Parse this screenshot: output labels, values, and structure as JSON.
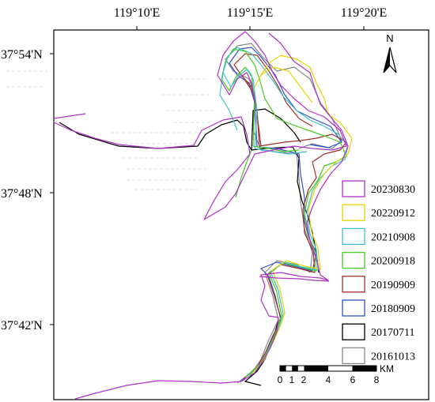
{
  "axes": {
    "longitude_labels": [
      "119°10'E",
      "119°15'E",
      "119°20'E"
    ],
    "latitude_labels": [
      "37°54'N",
      "37°48'N",
      "37°42'N"
    ]
  },
  "north_arrow": {
    "label": "N",
    "icon": "north-arrow-icon"
  },
  "legend": {
    "items": [
      {
        "label": "20230830",
        "color": "#b030c8"
      },
      {
        "label": "20220912",
        "color": "#e6d400"
      },
      {
        "label": "20210908",
        "color": "#3fc3c8"
      },
      {
        "label": "20200918",
        "color": "#44cc22"
      },
      {
        "label": "20190909",
        "color": "#a0302a"
      },
      {
        "label": "20180909",
        "color": "#3050c8"
      },
      {
        "label": "20170711",
        "color": "#000000"
      },
      {
        "label": "20161013",
        "color": "#888888"
      }
    ]
  },
  "scale_bar": {
    "ticks": [
      "0",
      "1",
      "2",
      "4",
      "6",
      "8"
    ],
    "unit": "KM"
  }
}
